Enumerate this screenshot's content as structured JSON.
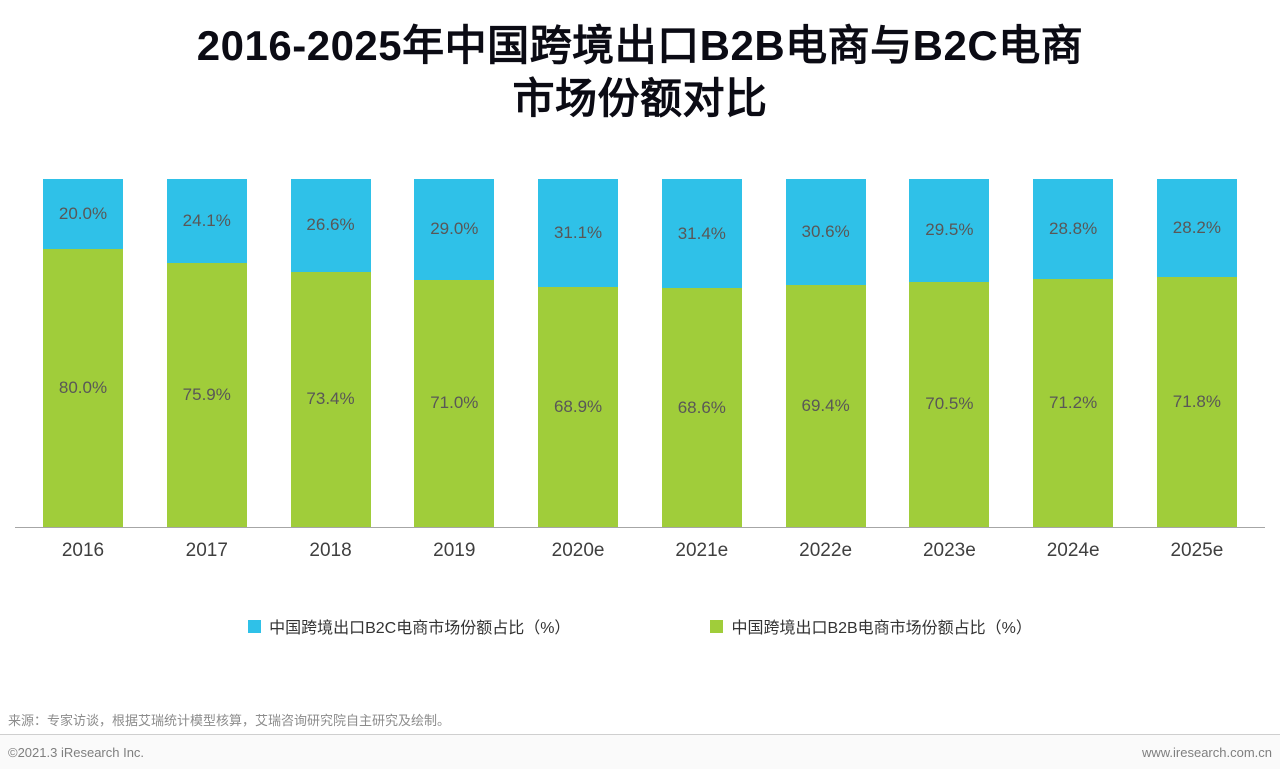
{
  "header": {
    "title_line1": "2016-2025年中国跨境出口B2B电商与B2C电商",
    "title_line2": "市场份额对比"
  },
  "chart_data": {
    "type": "bar",
    "stacked": true,
    "percent_stacked": true,
    "title": "2016-2025年中国跨境出口B2B电商与B2C电商市场份额对比",
    "categories": [
      "2016",
      "2017",
      "2018",
      "2019",
      "2020e",
      "2021e",
      "2022e",
      "2023e",
      "2024e",
      "2025e"
    ],
    "series": [
      {
        "name": "中国跨境出口B2C电商市场份额占比（%）",
        "color": "#2fc1e8",
        "values": [
          20.0,
          24.1,
          26.6,
          29.0,
          31.1,
          31.4,
          30.6,
          29.5,
          28.8,
          28.2
        ]
      },
      {
        "name": "中国跨境出口B2B电商市场份额占比（%）",
        "color": "#a0cd3a",
        "values": [
          80.0,
          75.9,
          73.4,
          71.0,
          68.9,
          68.6,
          69.4,
          70.5,
          71.2,
          71.8
        ]
      }
    ],
    "value_format": "0.0%",
    "ylim": [
      0,
      100
    ],
    "grid": false,
    "legend_position": "bottom"
  },
  "footer": {
    "source": "来源：专家访谈，根据艾瑞统计模型核算，艾瑞咨询研究院自主研究及绘制。",
    "copyright": "©2021.3 iResearch Inc.",
    "website": "www.iresearch.com.cn"
  }
}
